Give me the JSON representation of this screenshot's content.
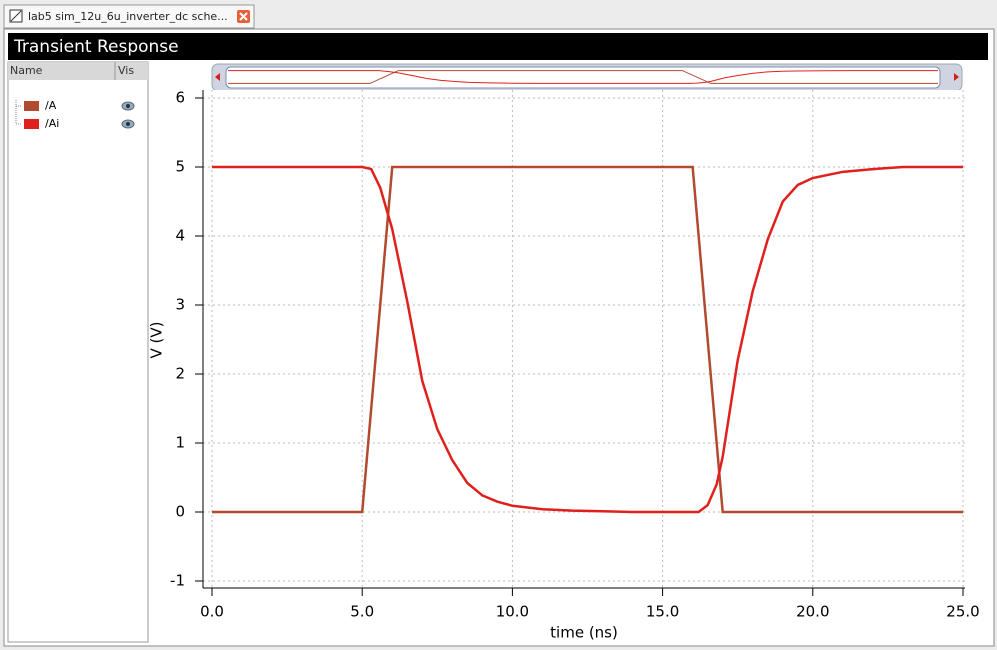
{
  "tab": {
    "title": "lab5 sim_12u_6u_inverter_dc sche..."
  },
  "panel": {
    "title": "Transient Response"
  },
  "legend_table": {
    "headers": [
      "Name",
      "Vis"
    ]
  },
  "chart_data": {
    "type": "line",
    "xlabel": "time (ns)",
    "ylabel": "V (V)",
    "xlim": [
      0,
      25
    ],
    "ylim": [
      -1,
      6
    ],
    "xticks": [
      {
        "value": 0,
        "label": "0.0"
      },
      {
        "value": 5,
        "label": "5.0"
      },
      {
        "value": 10,
        "label": "10.0"
      },
      {
        "value": 15,
        "label": "15.0"
      },
      {
        "value": 20,
        "label": "20.0"
      },
      {
        "value": 25,
        "label": "25.0"
      }
    ],
    "yticks": [
      -1,
      0,
      1,
      2,
      3,
      4,
      5,
      6
    ],
    "grid": true,
    "series": [
      {
        "name": "/A",
        "color": "#b24a30",
        "x": [
          0,
          5,
          6,
          16,
          17,
          25
        ],
        "values": [
          0,
          0,
          5,
          5,
          0,
          0
        ]
      },
      {
        "name": "/Ai",
        "color": "#e0201c",
        "x": [
          0,
          5,
          5.3,
          5.6,
          6,
          6.5,
          7,
          7.5,
          8,
          8.5,
          9,
          9.5,
          10,
          11,
          12,
          13,
          14,
          16,
          16.2,
          16.5,
          16.8,
          17,
          17.5,
          18,
          18.5,
          19,
          19.5,
          20,
          21,
          22,
          23,
          25
        ],
        "values": [
          5,
          5,
          4.97,
          4.7,
          4.1,
          3.05,
          1.9,
          1.2,
          0.75,
          0.42,
          0.24,
          0.15,
          0.09,
          0.04,
          0.02,
          0.01,
          0,
          0,
          0,
          0.1,
          0.4,
          0.8,
          2.2,
          3.2,
          3.95,
          4.5,
          4.74,
          4.84,
          4.93,
          4.97,
          5,
          5
        ]
      }
    ]
  }
}
